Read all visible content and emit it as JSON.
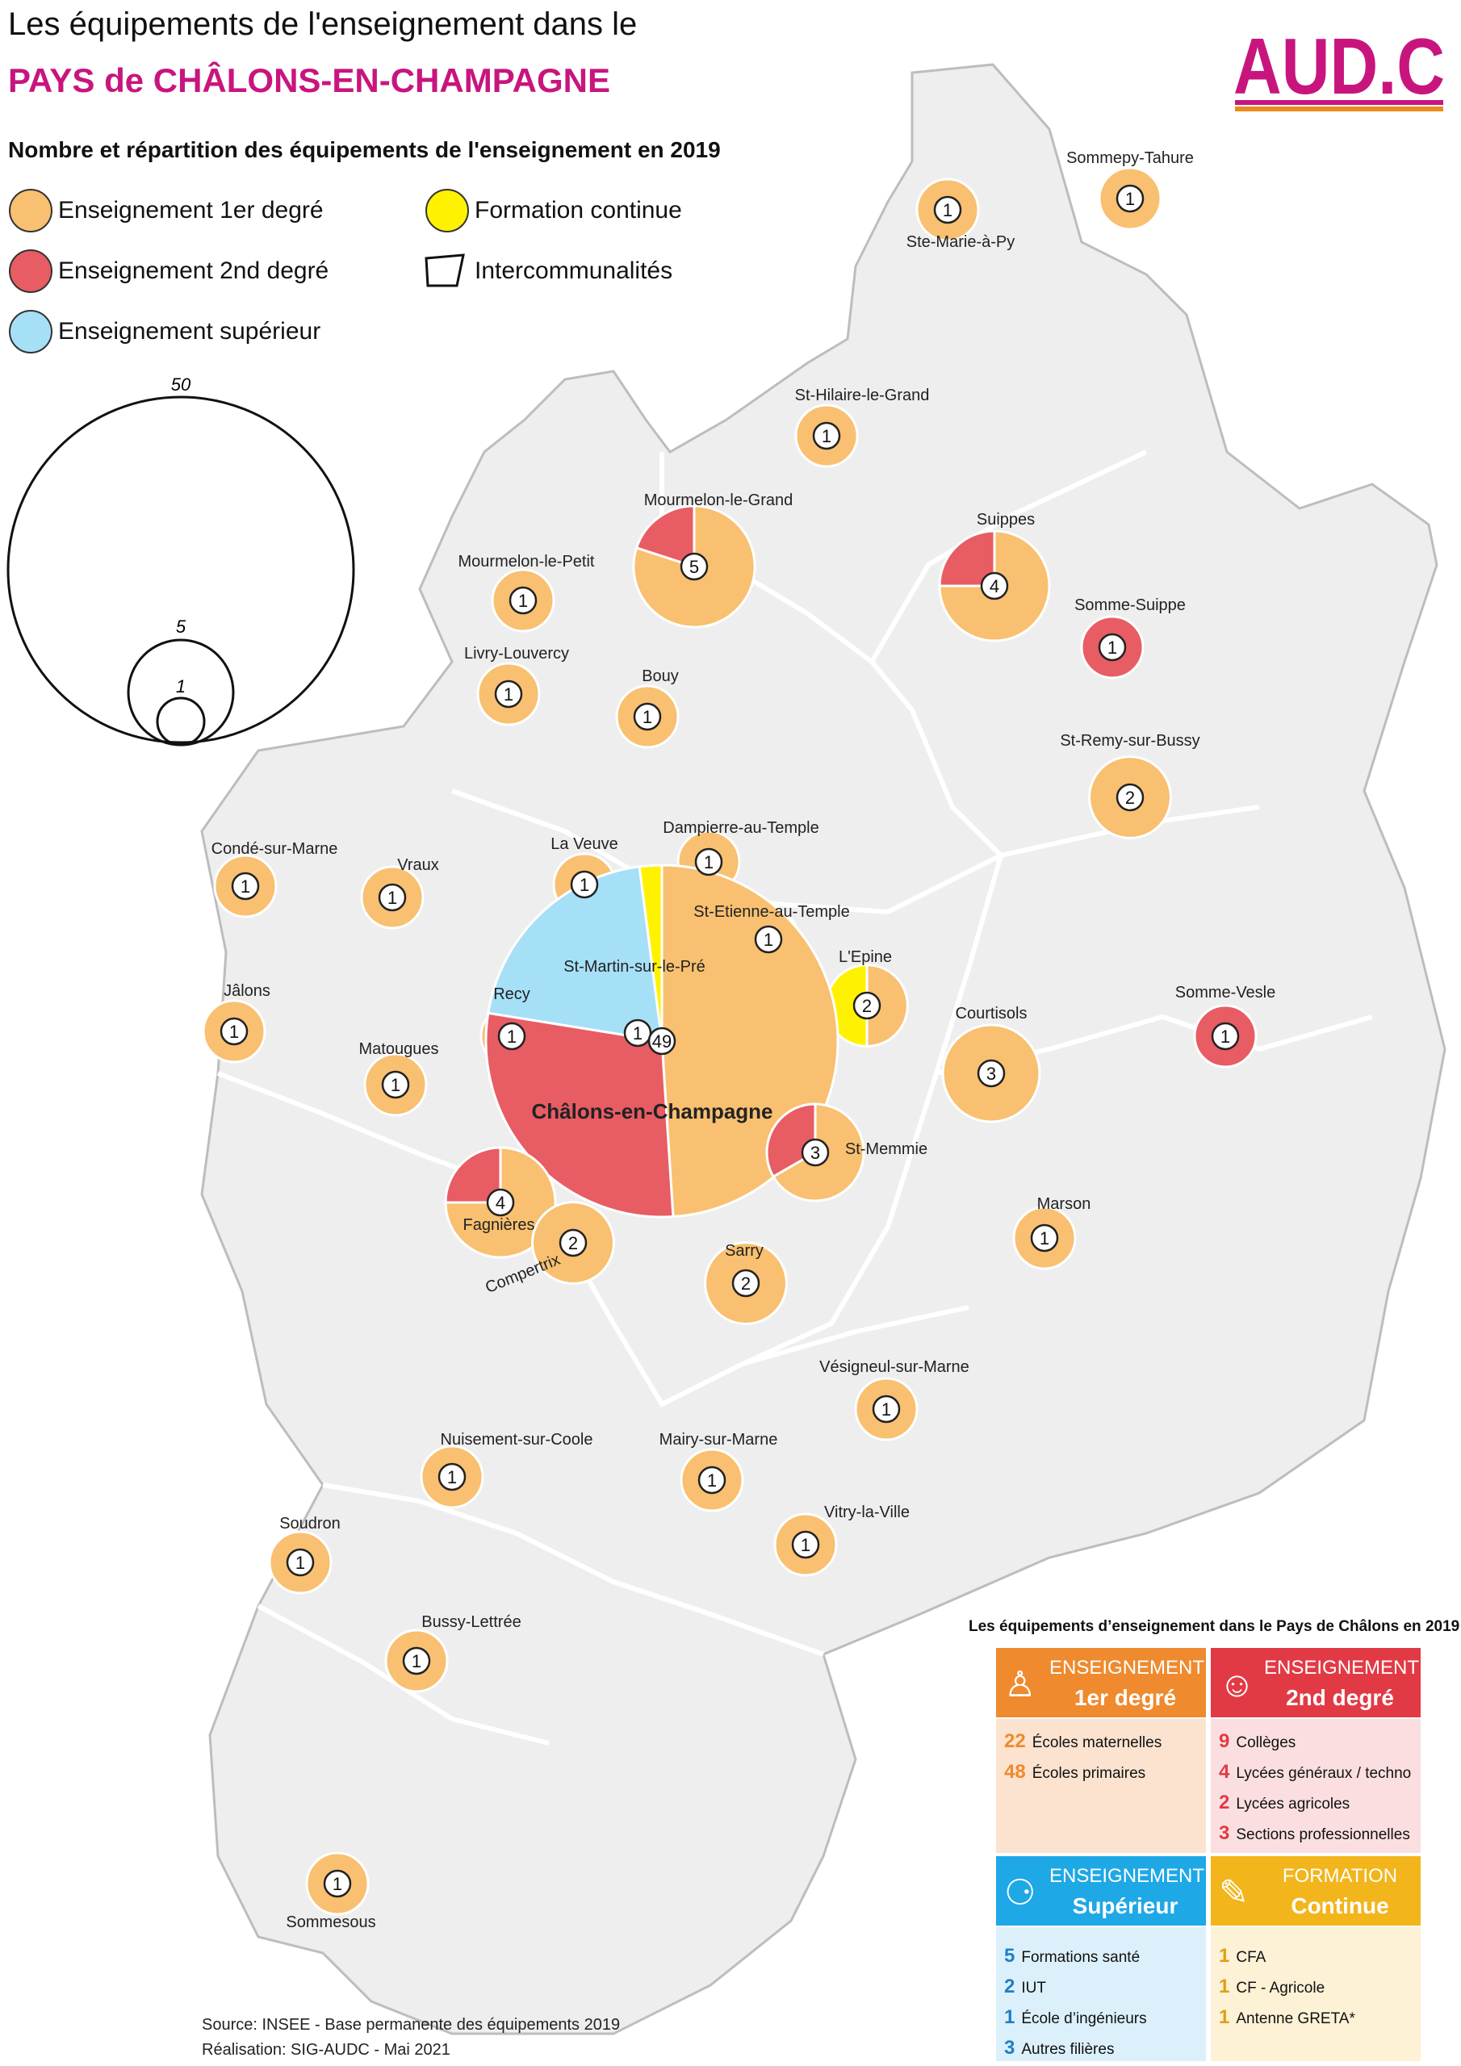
{
  "header": {
    "title_line1": "Les équipements de l'enseignement dans le",
    "title_line2": "PAYS de CHÂLONS-EN-CHAMPAGNE",
    "subtitle": "Nombre et répartition des équipements de l'enseignement en 2019"
  },
  "logo": {
    "text": "AUD.C",
    "icon": "audc-logo"
  },
  "legend": {
    "items": [
      {
        "label": "Enseignement 1er degré",
        "color": "#f8c070"
      },
      {
        "label": "Enseignement 2nd degré",
        "color": "#e85c64"
      },
      {
        "label": "Enseignement supérieur",
        "color": "#a6e0f7"
      },
      {
        "label": "Formation continue",
        "color": "#fff200"
      },
      {
        "label": "Intercommunalités",
        "color": "#ffffff"
      }
    ],
    "size_scale": [
      {
        "value": 50,
        "label": "50"
      },
      {
        "value": 5,
        "label": "5"
      },
      {
        "value": 1,
        "label": "1"
      }
    ]
  },
  "colors": {
    "primaire": "#f8c070",
    "secondaire": "#e85c64",
    "superieur": "#a6e0f7",
    "continue": "#fff200",
    "territory": "#eeeeee",
    "logo_pink": "#c8157e",
    "logo_orange": "#ec8a1e"
  },
  "places": [
    {
      "name": "Sommepy-Tahure",
      "total": 1,
      "prim": 1,
      "sec": 0,
      "sup": 0,
      "cont": 0
    },
    {
      "name": "Ste-Marie-à-Py",
      "total": 1,
      "prim": 1,
      "sec": 0,
      "sup": 0,
      "cont": 0
    },
    {
      "name": "St-Hilaire-le-Grand",
      "total": 1,
      "prim": 1,
      "sec": 0,
      "sup": 0,
      "cont": 0
    },
    {
      "name": "Mourmelon-le-Grand",
      "total": 5,
      "prim": 4,
      "sec": 1,
      "sup": 0,
      "cont": 0
    },
    {
      "name": "Suippes",
      "total": 4,
      "prim": 3,
      "sec": 1,
      "sup": 0,
      "cont": 0
    },
    {
      "name": "Mourmelon-le-Petit",
      "total": 1,
      "prim": 1,
      "sec": 0,
      "sup": 0,
      "cont": 0
    },
    {
      "name": "Somme-Suippe",
      "total": 1,
      "prim": 0,
      "sec": 1,
      "sup": 0,
      "cont": 0
    },
    {
      "name": "Livry-Louvercy",
      "total": 1,
      "prim": 1,
      "sec": 0,
      "sup": 0,
      "cont": 0
    },
    {
      "name": "Bouy",
      "total": 1,
      "prim": 1,
      "sec": 0,
      "sup": 0,
      "cont": 0
    },
    {
      "name": "St-Remy-sur-Bussy",
      "total": 2,
      "prim": 2,
      "sec": 0,
      "sup": 0,
      "cont": 0
    },
    {
      "name": "Dampierre-au-Temple",
      "total": 1,
      "prim": 1,
      "sec": 0,
      "sup": 0,
      "cont": 0
    },
    {
      "name": "Condé-sur-Marne",
      "total": 1,
      "prim": 1,
      "sec": 0,
      "sup": 0,
      "cont": 0
    },
    {
      "name": "Vraux",
      "total": 1,
      "prim": 1,
      "sec": 0,
      "sup": 0,
      "cont": 0
    },
    {
      "name": "La Veuve",
      "total": 1,
      "prim": 1,
      "sec": 0,
      "sup": 0,
      "cont": 0
    },
    {
      "name": "St-Etienne-au-Temple",
      "total": 1,
      "prim": 1,
      "sec": 0,
      "sup": 0,
      "cont": 0
    },
    {
      "name": "L'Epine",
      "total": 2,
      "prim": 1,
      "sec": 0,
      "sup": 0,
      "cont": 1
    },
    {
      "name": "St-Martin-sur-le-Pré",
      "total": 1,
      "prim": 1,
      "sec": 0,
      "sup": 0,
      "cont": 0
    },
    {
      "name": "Jâlons",
      "total": 1,
      "prim": 1,
      "sec": 0,
      "sup": 0,
      "cont": 0
    },
    {
      "name": "Recy",
      "total": 1,
      "prim": 1,
      "sec": 0,
      "sup": 0,
      "cont": 0
    },
    {
      "name": "Courtisols",
      "total": 3,
      "prim": 3,
      "sec": 0,
      "sup": 0,
      "cont": 0
    },
    {
      "name": "Somme-Vesle",
      "total": 1,
      "prim": 0,
      "sec": 1,
      "sup": 0,
      "cont": 0
    },
    {
      "name": "Matougues",
      "total": 1,
      "prim": 1,
      "sec": 0,
      "sup": 0,
      "cont": 0
    },
    {
      "name": "Châlons-en-Champagne",
      "total": 49,
      "prim": 24,
      "sec": 14,
      "sup": 10,
      "cont": 1
    },
    {
      "name": "St-Memmie",
      "total": 3,
      "prim": 2,
      "sec": 1,
      "sup": 0,
      "cont": 0
    },
    {
      "name": "Fagnières",
      "total": 4,
      "prim": 3,
      "sec": 1,
      "sup": 0,
      "cont": 0
    },
    {
      "name": "Compertrix",
      "total": 2,
      "prim": 2,
      "sec": 0,
      "sup": 0,
      "cont": 0
    },
    {
      "name": "Marson",
      "total": 1,
      "prim": 1,
      "sec": 0,
      "sup": 0,
      "cont": 0
    },
    {
      "name": "Sarry",
      "total": 2,
      "prim": 2,
      "sec": 0,
      "sup": 0,
      "cont": 0
    },
    {
      "name": "Vésigneul-sur-Marne",
      "total": 1,
      "prim": 1,
      "sec": 0,
      "sup": 0,
      "cont": 0
    },
    {
      "name": "Nuisement-sur-Coole",
      "total": 1,
      "prim": 1,
      "sec": 0,
      "sup": 0,
      "cont": 0
    },
    {
      "name": "Mairy-sur-Marne",
      "total": 1,
      "prim": 1,
      "sec": 0,
      "sup": 0,
      "cont": 0
    },
    {
      "name": "Vitry-la-Ville",
      "total": 1,
      "prim": 1,
      "sec": 0,
      "sup": 0,
      "cont": 0
    },
    {
      "name": "Soudron",
      "total": 1,
      "prim": 1,
      "sec": 0,
      "sup": 0,
      "cont": 0
    },
    {
      "name": "Bussy-Lettrée",
      "total": 1,
      "prim": 1,
      "sec": 0,
      "sup": 0,
      "cont": 0
    },
    {
      "name": "Sommesous",
      "total": 1,
      "prim": 1,
      "sec": 0,
      "sup": 0,
      "cont": 0
    }
  ],
  "summary": {
    "title": "Les équipements d’enseignement dans le Pays de Châlons en 2019",
    "primaire": {
      "head1": "ENSEIGNEMENT",
      "head2": "1er degré",
      "items": [
        {
          "n": "22",
          "label": "Écoles maternelles"
        },
        {
          "n": "48",
          "label": "Écoles primaires"
        }
      ]
    },
    "secondaire": {
      "head1": "ENSEIGNEMENT",
      "head2": "2nd degré",
      "items": [
        {
          "n": "9",
          "label": "Collèges"
        },
        {
          "n": "4",
          "label": "Lycées généraux / techno"
        },
        {
          "n": "2",
          "label": "Lycées agricoles"
        },
        {
          "n": "3",
          "label": "Sections professionnelles"
        }
      ]
    },
    "superieur": {
      "head1": "ENSEIGNEMENT",
      "head2": "Supérieur",
      "items": [
        {
          "n": "5",
          "label": "Formations santé"
        },
        {
          "n": "2",
          "label": "IUT"
        },
        {
          "n": "1",
          "label": "École d’ingénieurs"
        },
        {
          "n": "3",
          "label": "Autres filières"
        }
      ]
    },
    "continue": {
      "head1": "FORMATION",
      "head2": "Continue",
      "items": [
        {
          "n": "1",
          "label": "CFA"
        },
        {
          "n": "1",
          "label": "CF - Agricole"
        },
        {
          "n": "1",
          "label": "Antenne GRETA*"
        }
      ]
    }
  },
  "footer": {
    "source": "Source: INSEE - Base permanente des équipements 2019",
    "realisation": "Réalisation: SIG-AUDC - Mai 2021"
  }
}
